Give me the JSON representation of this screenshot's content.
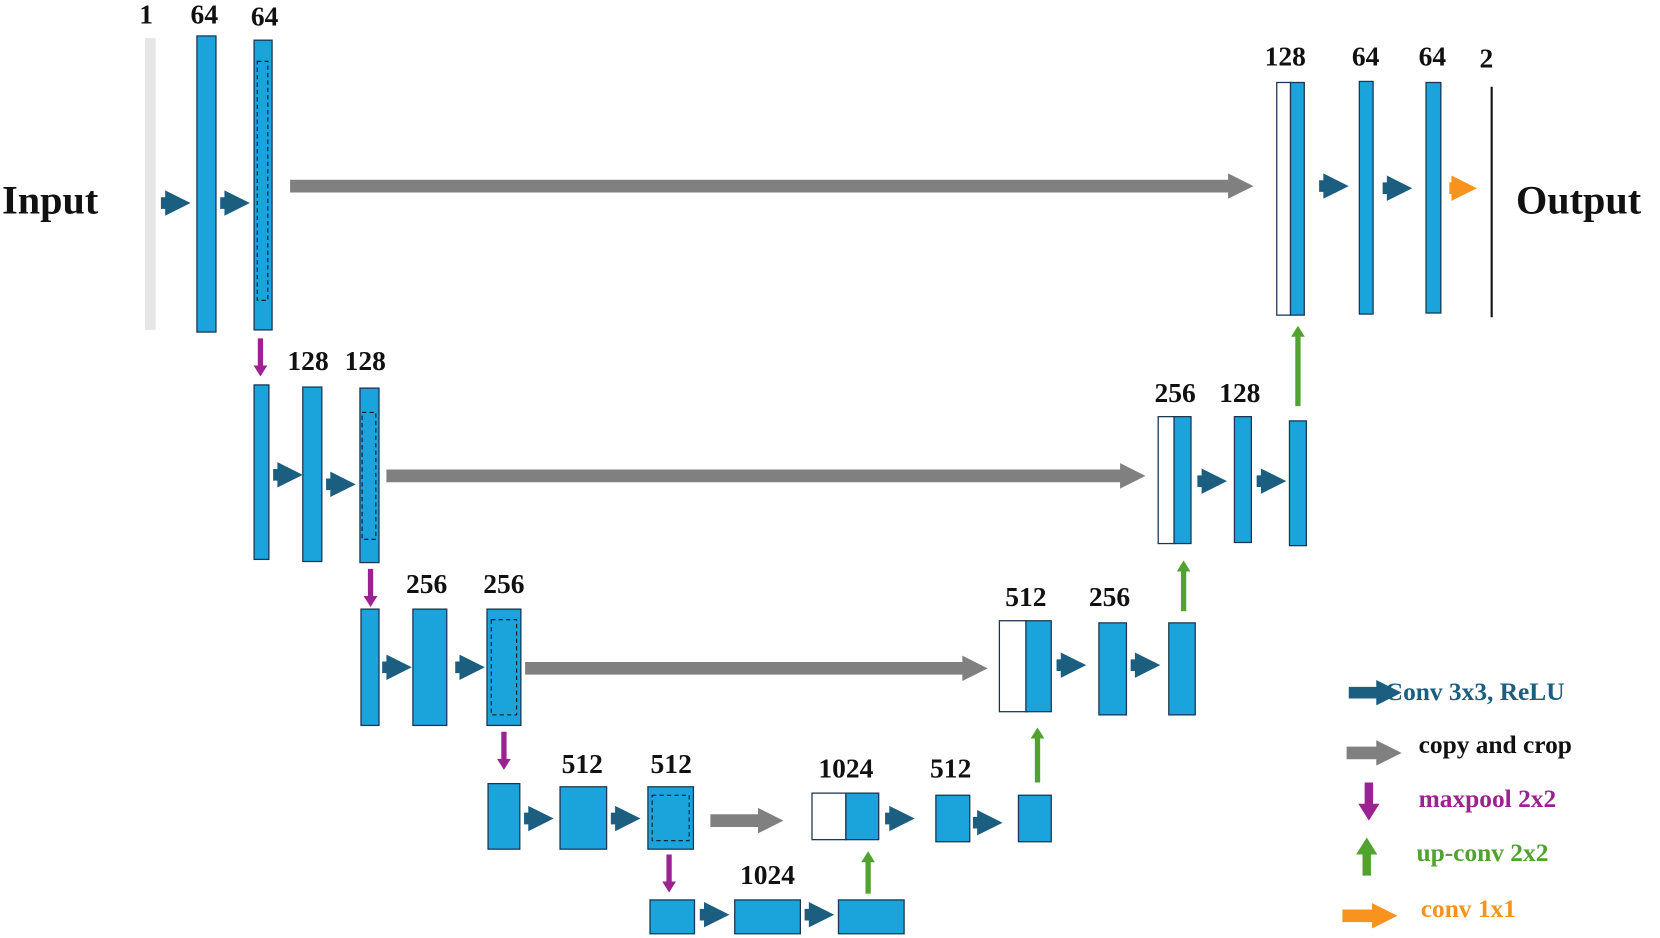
{
  "input_label": "Input",
  "output_label": "Output",
  "channel_labels": [
    "1",
    "64",
    "64",
    "128",
    "128",
    "256",
    "256",
    "512",
    "512",
    "1024",
    "1024",
    "512",
    "512",
    "256",
    "256",
    "128",
    "128",
    "64",
    "64",
    "2"
  ],
  "legend": [
    "Conv 3x3, ReLU",
    "copy and crop",
    "maxpool 2x2",
    "up-conv 2x2",
    "conv 1x1"
  ]
}
